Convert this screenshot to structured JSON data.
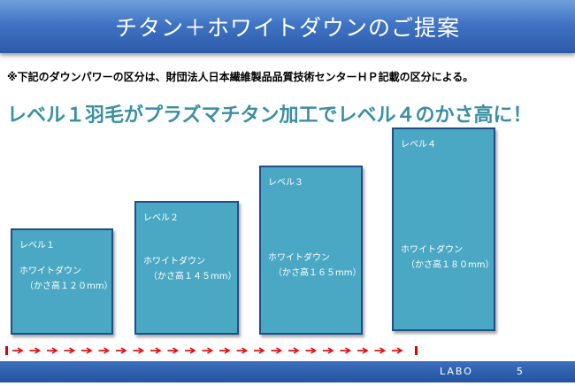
{
  "slide": {
    "title": "チタン＋ホワイトダウンのご提案",
    "note": "※下記のダウンパワーの区分は、財団法人日本繊維製品品質技術センターＨＰ記載の区分による。",
    "headline": "レベル１羽毛がプラズマチタン加工でレベル４のかさ高に！"
  },
  "levels": [
    {
      "label": "レベル１",
      "name": "ホワイトダウン",
      "spec": "（かさ高１２０mm）",
      "bulk_mm": 120
    },
    {
      "label": "レベル２",
      "name": "ホワイトダウン",
      "spec": "（かさ高１４５mm）",
      "bulk_mm": 145
    },
    {
      "label": "レベル３",
      "name": "ホワイトダウン",
      "spec": "（かさ高１６５mm）",
      "bulk_mm": 165
    },
    {
      "label": "レベル４",
      "name": "ホワイトダウン",
      "spec": "（かさ高１８０mm）",
      "bulk_mm": 180
    }
  ],
  "footer": {
    "brand": "LABO",
    "page": "5"
  },
  "colors": {
    "title_bar": "#3f74c4",
    "headline": "#3a8fa3",
    "box_fill": "#4aa8c4",
    "box_border": "#1f4f86",
    "arrow": "#e00000",
    "footer_bar": "#22539f"
  }
}
